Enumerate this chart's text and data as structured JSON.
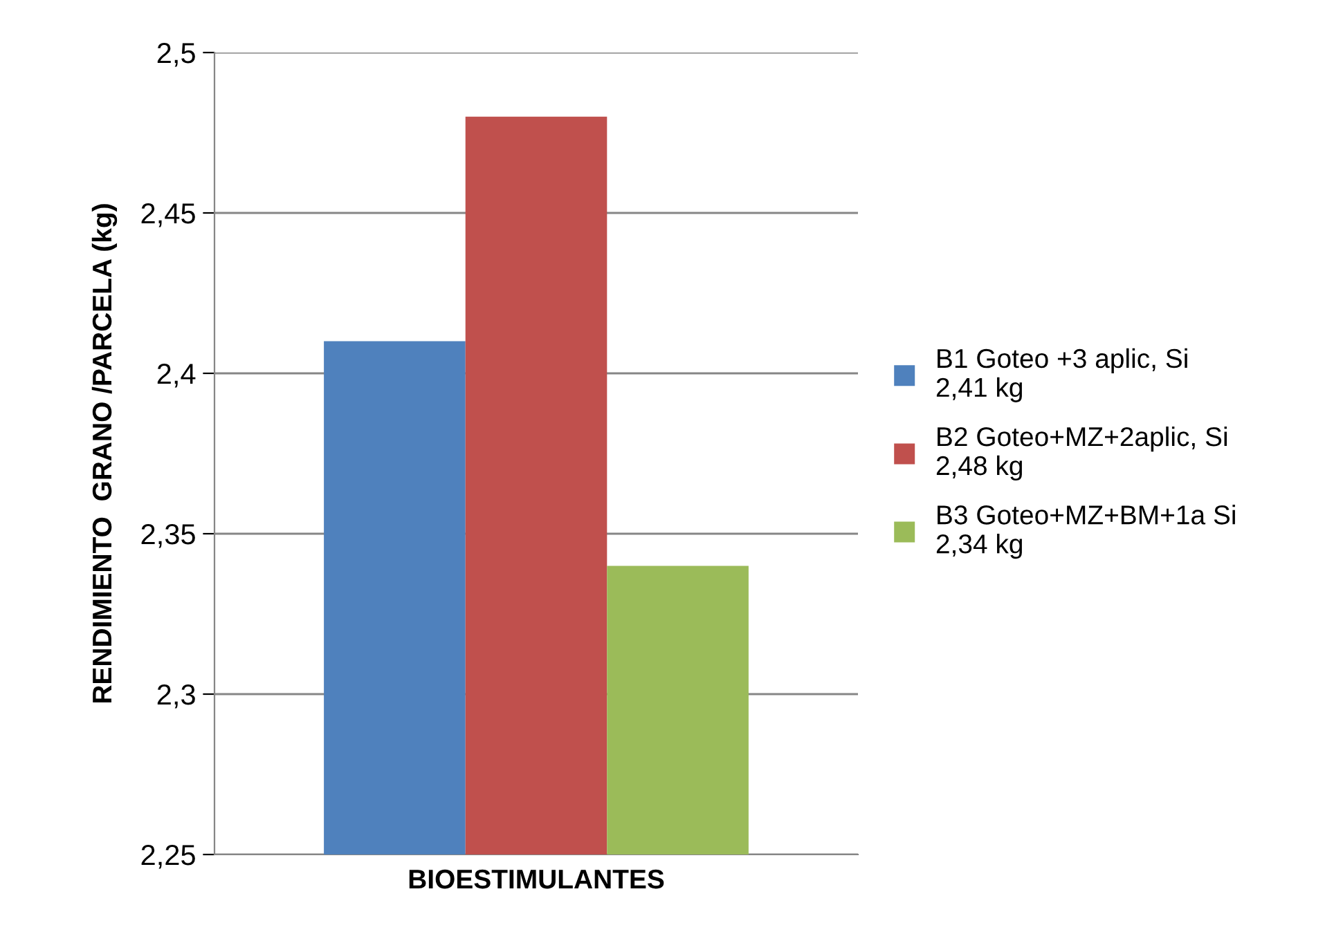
{
  "chart_data": {
    "type": "bar",
    "xlabel": "BIOESTIMULANTES",
    "ylabel": "RENDIMIENTO  GRANO /PARCELA (kg)",
    "categories": [
      null
    ],
    "series": [
      {
        "name": "B1 Goteo +3 aplic, Si\n2,41 kg",
        "color": "#4f81bd",
        "values": [
          2.41
        ]
      },
      {
        "name": "B2 Goteo+MZ+2aplic, Si\n2,48 kg",
        "color": "#c0504d",
        "values": [
          2.48
        ]
      },
      {
        "name": "B3 Goteo+MZ+BM+1a Si\n2,34 kg",
        "color": "#9bbb59",
        "values": [
          2.34
        ]
      }
    ],
    "ylim": [
      2.25,
      2.5
    ],
    "yticks": [
      {
        "value": 2.25,
        "label": "2,25"
      },
      {
        "value": 2.3,
        "label": "2,3"
      },
      {
        "value": 2.35,
        "label": "2,35"
      },
      {
        "value": 2.4,
        "label": "2,4"
      },
      {
        "value": 2.45,
        "label": "2,45"
      },
      {
        "value": 2.5,
        "label": "2,5"
      }
    ],
    "grid": "y",
    "legend": "right"
  }
}
